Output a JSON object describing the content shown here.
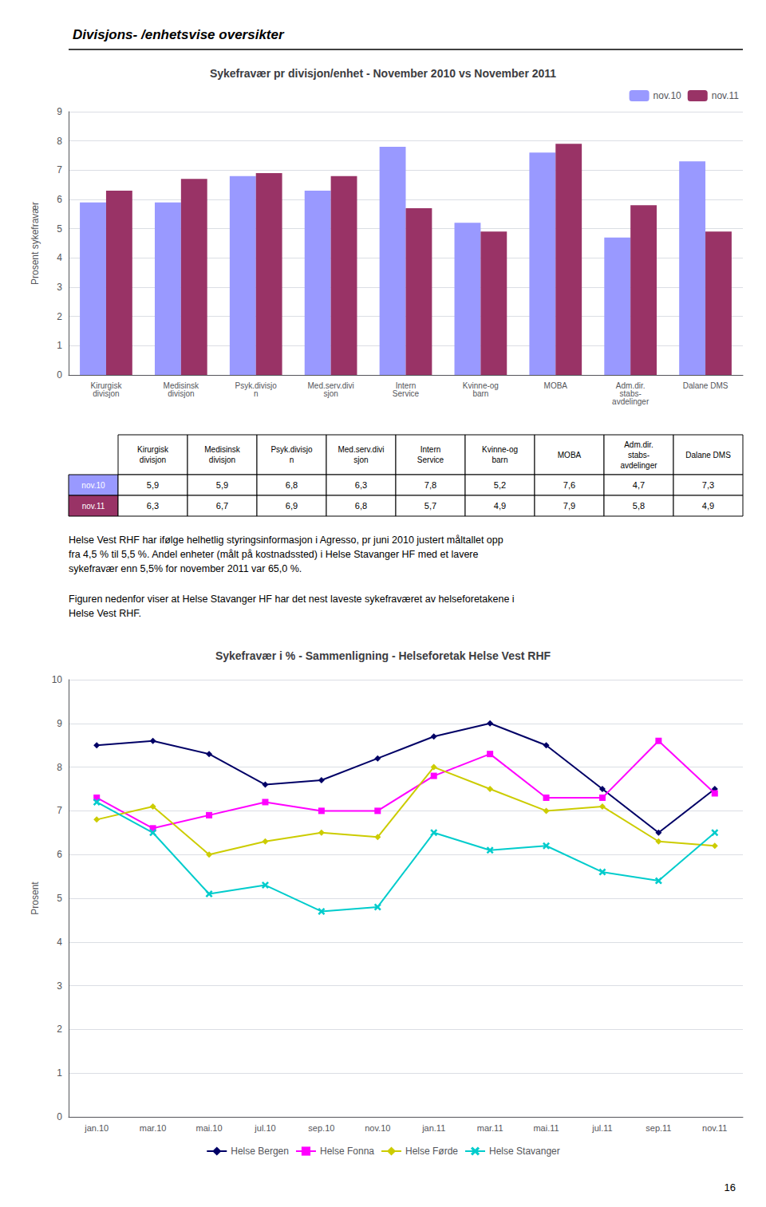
{
  "title": "Divisjons- /enhetsvise oversikter",
  "chart_data": [
    {
      "type": "bar",
      "title": "Sykefravær pr divisjon/enhet - November 2010 vs November 2011",
      "ylabel": "Prosent sykefravær",
      "categories": [
        "Kirurgisk\ndivisjon",
        "Medisinsk\ndivisjon",
        "Psyk.divisjo\nn",
        "Med.serv.divi\nsjon",
        "Intern\nService",
        "Kvinne-og\nbarn",
        "MOBA",
        "Adm.dir.\nstabs-\navdelinger",
        "Dalane DMS"
      ],
      "series": [
        {
          "name": "nov.10",
          "color": "#9999FF",
          "values": [
            5.9,
            5.9,
            6.8,
            6.3,
            7.8,
            5.2,
            7.6,
            4.7,
            7.3
          ]
        },
        {
          "name": "nov.11",
          "color": "#993366",
          "values": [
            6.3,
            6.7,
            6.9,
            6.8,
            5.7,
            4.9,
            7.9,
            5.8,
            4.9
          ]
        }
      ],
      "ylim": [
        0,
        9
      ],
      "yticks": [
        0,
        1,
        2,
        3,
        4,
        5,
        6,
        7,
        8,
        9
      ],
      "grid": true,
      "legend": "upper right",
      "table": {
        "columns": [
          "Kirurgisk\ndivisjon",
          "Medisinsk\ndivisjon",
          "Psyk.divisjo\nn",
          "Med.serv.divi\nsjon",
          "Intern\nService",
          "Kvinne-og\nbarn",
          "MOBA",
          "Adm.dir.\nstabs-\navdelinger",
          "Dalane DMS"
        ],
        "rows": [
          {
            "name": "nov.10",
            "cells": [
              {
                "value": 5.9,
                "label": "5,9"
              },
              {
                "value": 5.9,
                "label": "5,9"
              },
              {
                "value": 6.8,
                "label": "6,8"
              },
              {
                "value": 6.3,
                "label": "6,3"
              },
              {
                "value": 7.8,
                "label": "7,8"
              },
              {
                "value": 5.2,
                "label": "5,2"
              },
              {
                "value": 7.6,
                "label": "7,6"
              },
              {
                "value": 4.7,
                "label": "4,7"
              },
              {
                "value": 7.3,
                "label": "7,3"
              }
            ]
          },
          {
            "name": "nov.11",
            "cells": [
              {
                "value": 6.3,
                "label": "6,3"
              },
              {
                "value": 6.7,
                "label": "6,7"
              },
              {
                "value": 6.9,
                "label": "6,9"
              },
              {
                "value": 6.8,
                "label": "6,8"
              },
              {
                "value": 5.7,
                "label": "5,7"
              },
              {
                "value": 4.9,
                "label": "4,9"
              },
              {
                "value": 7.9,
                "label": "7,9"
              },
              {
                "value": 5.8,
                "label": "5,8"
              },
              {
                "value": 4.9,
                "label": "4,9"
              }
            ]
          }
        ]
      }
    },
    {
      "type": "line",
      "title": "Sykefravær i % - Sammenligning - Helseforetak Helse Vest RHF",
      "ylabel": "Prosent",
      "categories": [
        "jan.10",
        "mar.10",
        "mai.10",
        "jul.10",
        "sep.10",
        "nov.10",
        "jan.11",
        "mar.11",
        "mai.11",
        "jul.11",
        "sep.11",
        "nov.11"
      ],
      "series": [
        {
          "name": "Helse Bergen",
          "color": "#000066",
          "marker": "diamond",
          "values": [
            8.5,
            8.6,
            8.3,
            7.6,
            7.7,
            8.2,
            8.7,
            9.0,
            8.5,
            7.5,
            6.5,
            7.5
          ]
        },
        {
          "name": "Helse Fonna",
          "color": "#FF00FF",
          "marker": "square",
          "values": [
            7.3,
            6.6,
            6.9,
            7.2,
            7.0,
            7.0,
            7.8,
            8.3,
            7.3,
            7.3,
            8.6,
            7.4
          ]
        },
        {
          "name": "Helse Førde",
          "color": "#CCCC00",
          "marker": "diamond",
          "values": [
            6.8,
            7.1,
            6.0,
            6.3,
            6.5,
            6.4,
            8.0,
            7.5,
            7.0,
            7.1,
            6.3,
            6.2
          ]
        },
        {
          "name": "Helse Stavanger",
          "color": "#00CCCC",
          "marker": "x",
          "values": [
            7.2,
            6.5,
            5.1,
            5.3,
            4.7,
            4.8,
            6.5,
            6.1,
            6.2,
            5.6,
            5.4,
            6.5
          ]
        }
      ],
      "ylim": [
        0,
        10
      ],
      "yticks": [
        0,
        1,
        2,
        3,
        4,
        5,
        6,
        7,
        8,
        9,
        10
      ],
      "grid": true,
      "legend": "bottom"
    }
  ],
  "texts": [
    "Helse Vest RHF har ifølge helhetlig styringsinformasjon i Agresso, pr juni 2010 justert måltallet opp\nfra 4,5 % til 5,5 %. Andel enheter (målt på kostnadssted) i Helse Stavanger HF med et lavere\nsykefravær enn 5,5% for november 2011 var 65,0 %.",
    "Figuren nedenfor viser at Helse Stavanger HF har det nest laveste sykefraværet av helseforetakene i\nHelse Vest RHF."
  ],
  "page_number": "16"
}
